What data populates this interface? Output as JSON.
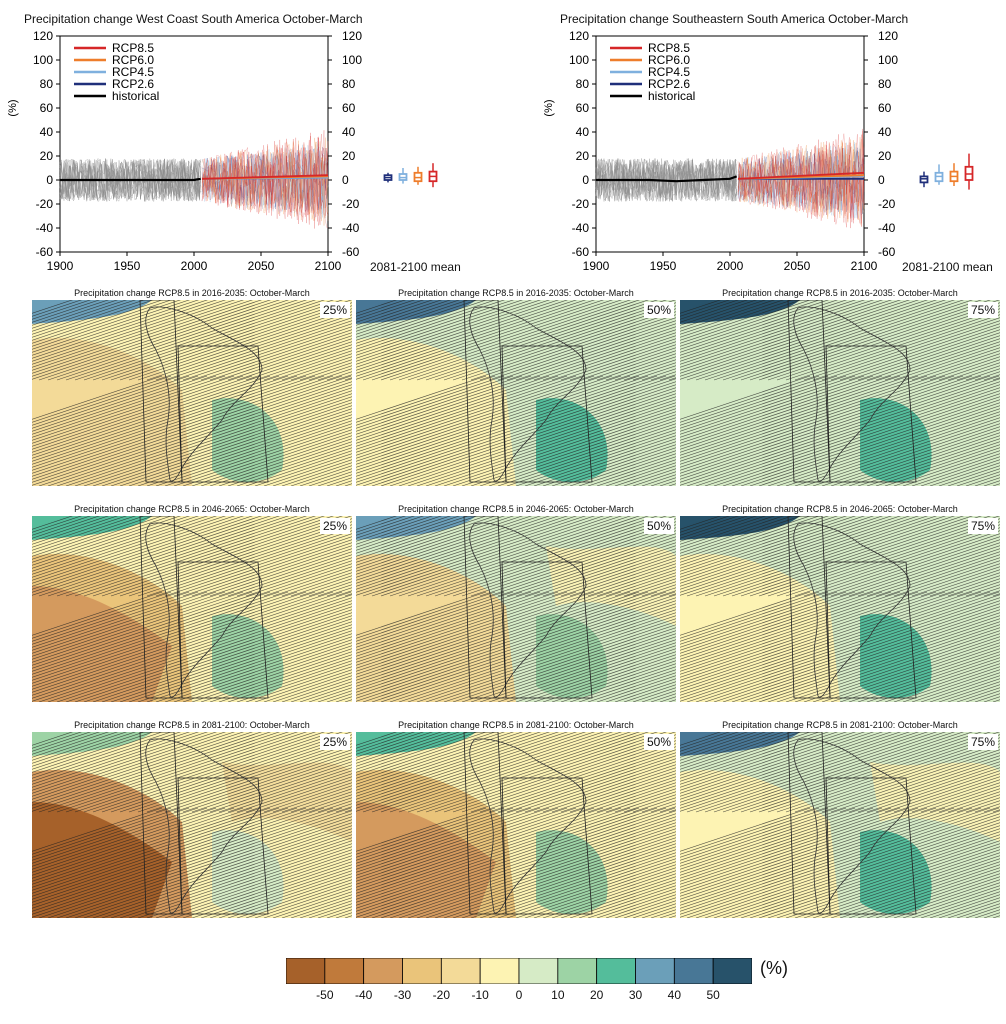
{
  "chart_data": [
    {
      "type": "line",
      "title": "Precipitation change West Coast South America October-March",
      "ylabel": "(%)",
      "xlim": [
        1900,
        2100
      ],
      "ylim": [
        -60,
        120
      ],
      "x_ticks": [
        "1900",
        "1950",
        "2000",
        "2050",
        "2100"
      ],
      "y_ticks": [
        "120",
        "100",
        "80",
        "60",
        "40",
        "20",
        "0",
        "-20",
        "-40",
        "-60"
      ],
      "legend": [
        "RCP8.5",
        "RCP6.0",
        "RCP4.5",
        "RCP2.6",
        "historical"
      ],
      "mean_label": "2081-2100 mean",
      "series": [
        {
          "name": "historical",
          "color": "#000000",
          "x": [
            1900,
            1920,
            1940,
            1960,
            1980,
            2000,
            2005
          ],
          "y": [
            0,
            0,
            0,
            0,
            0,
            0,
            1
          ]
        },
        {
          "name": "RCP2.6",
          "color": "#1f2f7a",
          "x": [
            2006,
            2100
          ],
          "y": [
            1,
            2
          ]
        },
        {
          "name": "RCP4.5",
          "color": "#7fb0de",
          "x": [
            2006,
            2100
          ],
          "y": [
            1,
            2
          ]
        },
        {
          "name": "RCP6.0",
          "color": "#ee7d2b",
          "x": [
            2006,
            2100
          ],
          "y": [
            1,
            3
          ]
        },
        {
          "name": "RCP8.5",
          "color": "#d62728",
          "x": [
            2006,
            2100
          ],
          "y": [
            1,
            4
          ]
        }
      ],
      "boxplots_2081_2100": [
        {
          "name": "RCP2.6",
          "color": "#1f2f7a",
          "median": 2,
          "q1": 0,
          "q3": 4,
          "lo": -2,
          "hi": 6
        },
        {
          "name": "RCP4.5",
          "color": "#7fb0de",
          "median": 2,
          "q1": 0,
          "q3": 5,
          "lo": -3,
          "hi": 10
        },
        {
          "name": "RCP6.0",
          "color": "#ee7d2b",
          "median": 2,
          "q1": -1,
          "q3": 6,
          "lo": -4,
          "hi": 11
        },
        {
          "name": "RCP8.5",
          "color": "#d62728",
          "median": 3,
          "q1": -1,
          "q3": 7,
          "lo": -6,
          "hi": 14
        }
      ]
    },
    {
      "type": "line",
      "title": "Precipitation change Southeastern South America October-March",
      "ylabel": "(%)",
      "xlim": [
        1900,
        2100
      ],
      "ylim": [
        -60,
        120
      ],
      "x_ticks": [
        "1900",
        "1950",
        "2000",
        "2050",
        "2100"
      ],
      "y_ticks": [
        "120",
        "100",
        "80",
        "60",
        "40",
        "20",
        "0",
        "-20",
        "-40",
        "-60"
      ],
      "legend": [
        "RCP8.5",
        "RCP6.0",
        "RCP4.5",
        "RCP2.6",
        "historical"
      ],
      "mean_label": "2081-2100 mean",
      "series": [
        {
          "name": "historical",
          "color": "#000000",
          "x": [
            1900,
            1920,
            1940,
            1960,
            1980,
            2000,
            2005
          ],
          "y": [
            0,
            0,
            0,
            -1,
            0,
            1,
            3
          ]
        },
        {
          "name": "RCP2.6",
          "color": "#1f2f7a",
          "x": [
            2006,
            2100
          ],
          "y": [
            1,
            1
          ]
        },
        {
          "name": "RCP4.5",
          "color": "#7fb0de",
          "x": [
            2006,
            2100
          ],
          "y": [
            1,
            3
          ]
        },
        {
          "name": "RCP6.0",
          "color": "#ee7d2b",
          "x": [
            2006,
            2100
          ],
          "y": [
            1,
            4
          ]
        },
        {
          "name": "RCP8.5",
          "color": "#d62728",
          "x": [
            2006,
            2100
          ],
          "y": [
            1,
            6
          ]
        }
      ],
      "boxplots_2081_2100": [
        {
          "name": "RCP2.6",
          "color": "#1f2f7a",
          "median": 1,
          "q1": -2,
          "q3": 3,
          "lo": -6,
          "hi": 7
        },
        {
          "name": "RCP4.5",
          "color": "#7fb0de",
          "median": 3,
          "q1": -1,
          "q3": 6,
          "lo": -4,
          "hi": 13
        },
        {
          "name": "RCP6.0",
          "color": "#ee7d2b",
          "median": 3,
          "q1": -1,
          "q3": 7,
          "lo": -5,
          "hi": 14
        },
        {
          "name": "RCP8.5",
          "color": "#d62728",
          "median": 5,
          "q1": 0,
          "q3": 11,
          "lo": -8,
          "hi": 22
        }
      ]
    },
    {
      "type": "heatmap",
      "maps": [
        {
          "title": "Precipitation change RCP8.5 in 2016-2035: October-March",
          "percentile": "25%",
          "intensity": 0.4
        },
        {
          "title": "Precipitation change RCP8.5 in 2016-2035: October-March",
          "percentile": "50%",
          "intensity": 0.2
        },
        {
          "title": "Precipitation change RCP8.5 in 2016-2035: October-March",
          "percentile": "75%",
          "intensity": 0.0
        },
        {
          "title": "Precipitation change RCP8.5 in 2046-2065: October-March",
          "percentile": "25%",
          "intensity": 0.6
        },
        {
          "title": "Precipitation change RCP8.5 in 2046-2065: October-March",
          "percentile": "50%",
          "intensity": 0.35
        },
        {
          "title": "Precipitation change RCP8.5 in 2046-2065: October-March",
          "percentile": "75%",
          "intensity": 0.05
        },
        {
          "title": "Precipitation change RCP8.5 in 2081-2100: October-March",
          "percentile": "25%",
          "intensity": 0.95
        },
        {
          "title": "Precipitation change RCP8.5 in 2081-2100: October-March",
          "percentile": "50%",
          "intensity": 0.7
        },
        {
          "title": "Precipitation change RCP8.5 in 2081-2100: October-March",
          "percentile": "75%",
          "intensity": 0.25
        }
      ],
      "colorbar": {
        "unit": "(%)",
        "ticks": [
          "-50",
          "-40",
          "-30",
          "-20",
          "-10",
          "0",
          "10",
          "20",
          "30",
          "40",
          "50"
        ],
        "colors": [
          "#a6612a",
          "#c07a3b",
          "#d49a5e",
          "#eac47a",
          "#f3da98",
          "#fdf3b3",
          "#d6ebc6",
          "#9dd3a5",
          "#54bd9b",
          "#6b9fb9",
          "#487796",
          "#27526a"
        ]
      }
    }
  ]
}
